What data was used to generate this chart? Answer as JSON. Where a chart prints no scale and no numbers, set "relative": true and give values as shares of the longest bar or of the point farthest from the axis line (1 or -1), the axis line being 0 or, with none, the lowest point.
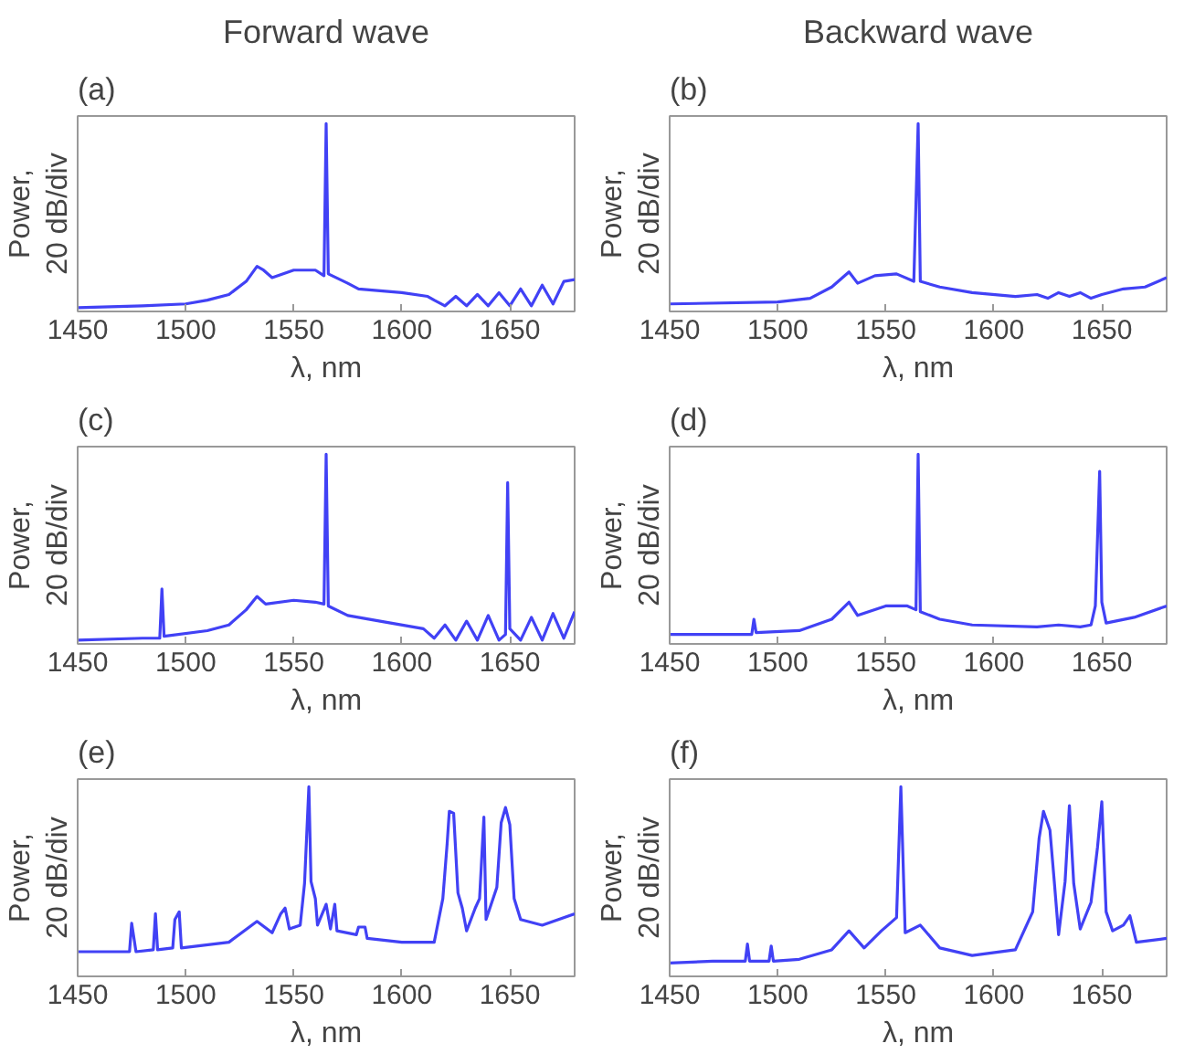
{
  "chart_data": [
    {
      "type": "line",
      "title": "Forward wave",
      "annotations": [
        "(a)"
      ],
      "xlabel": "λ, nm",
      "ylabel": "Power,\n20 dB/div",
      "relative": true,
      "tick_labels": "x",
      "xlim": [
        1450,
        1680
      ],
      "xticks": [
        1450,
        1500,
        1550,
        1600,
        1650
      ],
      "color": "#4141f5",
      "x": [
        1450,
        1480,
        1500,
        1510,
        1520,
        1528,
        1533,
        1536,
        1540,
        1550,
        1560,
        1564,
        1565,
        1566,
        1575,
        1580,
        1600,
        1612,
        1615,
        1620,
        1625,
        1630,
        1635,
        1640,
        1645,
        1650,
        1655,
        1660,
        1665,
        1670,
        1675,
        1680
      ],
      "values": [
        0.02,
        0.03,
        0.04,
        0.06,
        0.09,
        0.16,
        0.24,
        0.22,
        0.18,
        0.22,
        0.22,
        0.19,
        1.0,
        0.2,
        0.15,
        0.12,
        0.1,
        0.08,
        0.06,
        0.03,
        0.08,
        0.03,
        0.09,
        0.03,
        0.1,
        0.03,
        0.12,
        0.03,
        0.14,
        0.04,
        0.16,
        0.17
      ]
    },
    {
      "type": "line",
      "title": "Backward wave",
      "annotations": [
        "(b)"
      ],
      "xlabel": "λ, nm",
      "ylabel": "Power,\n20 dB/div",
      "relative": true,
      "tick_labels": "x",
      "xlim": [
        1450,
        1680
      ],
      "xticks": [
        1450,
        1500,
        1550,
        1600,
        1650
      ],
      "color": "#4141f5",
      "x": [
        1450,
        1500,
        1515,
        1525,
        1533,
        1537,
        1545,
        1555,
        1563,
        1565,
        1566,
        1575,
        1590,
        1610,
        1620,
        1625,
        1630,
        1635,
        1640,
        1645,
        1650,
        1660,
        1670,
        1680
      ],
      "values": [
        0.04,
        0.05,
        0.07,
        0.13,
        0.21,
        0.15,
        0.19,
        0.2,
        0.16,
        1.0,
        0.16,
        0.13,
        0.1,
        0.08,
        0.09,
        0.07,
        0.1,
        0.08,
        0.1,
        0.07,
        0.09,
        0.12,
        0.13,
        0.18
      ]
    },
    {
      "type": "line",
      "annotations": [
        "(c)"
      ],
      "xlabel": "λ, nm",
      "ylabel": "Power,\n20 dB/div",
      "relative": true,
      "tick_labels": "x",
      "xlim": [
        1450,
        1680
      ],
      "xticks": [
        1450,
        1500,
        1550,
        1600,
        1650
      ],
      "color": "#4141f5",
      "x": [
        1450,
        1480,
        1488,
        1489,
        1490,
        1510,
        1520,
        1528,
        1533,
        1537,
        1550,
        1560,
        1564,
        1565,
        1566,
        1575,
        1590,
        1610,
        1615,
        1620,
        1625,
        1630,
        1635,
        1640,
        1645,
        1648,
        1649,
        1650,
        1655,
        1660,
        1665,
        1670,
        1675,
        1680
      ],
      "values": [
        0.02,
        0.03,
        0.03,
        0.29,
        0.04,
        0.07,
        0.1,
        0.18,
        0.25,
        0.21,
        0.23,
        0.22,
        0.21,
        1.0,
        0.2,
        0.15,
        0.12,
        0.08,
        0.03,
        0.1,
        0.02,
        0.12,
        0.02,
        0.15,
        0.02,
        0.05,
        0.85,
        0.08,
        0.02,
        0.14,
        0.02,
        0.16,
        0.03,
        0.17
      ]
    },
    {
      "type": "line",
      "annotations": [
        "(d)"
      ],
      "xlabel": "λ, nm",
      "ylabel": "Power,\n20 dB/div",
      "relative": true,
      "tick_labels": "x",
      "xlim": [
        1450,
        1680
      ],
      "xticks": [
        1450,
        1500,
        1550,
        1600,
        1650
      ],
      "color": "#4141f5",
      "x": [
        1450,
        1488,
        1489,
        1490,
        1510,
        1525,
        1533,
        1537,
        1550,
        1560,
        1564,
        1565,
        1566,
        1575,
        1590,
        1620,
        1630,
        1640,
        1645,
        1647,
        1649,
        1650,
        1652,
        1665,
        1680
      ],
      "values": [
        0.05,
        0.05,
        0.13,
        0.06,
        0.07,
        0.13,
        0.22,
        0.15,
        0.2,
        0.2,
        0.18,
        1.0,
        0.17,
        0.13,
        0.1,
        0.09,
        0.1,
        0.09,
        0.1,
        0.2,
        0.91,
        0.22,
        0.11,
        0.14,
        0.2
      ]
    },
    {
      "type": "line",
      "annotations": [
        "(e)"
      ],
      "xlabel": "λ, nm",
      "ylabel": "Power,\n20 dB/div",
      "relative": true,
      "tick_labels": "x",
      "xlim": [
        1450,
        1680
      ],
      "xticks": [
        1450,
        1500,
        1550,
        1600,
        1650
      ],
      "color": "#4141f5",
      "x": [
        1450,
        1474,
        1475,
        1477,
        1485,
        1486,
        1487,
        1494,
        1495,
        1497,
        1498,
        1520,
        1533,
        1540,
        1544,
        1546,
        1548,
        1553,
        1555,
        1557,
        1558,
        1560,
        1561,
        1565,
        1567,
        1569,
        1570,
        1579,
        1580,
        1583,
        1584,
        1600,
        1615,
        1619,
        1621,
        1622,
        1624,
        1626,
        1628,
        1630,
        1634,
        1636,
        1638,
        1639,
        1644,
        1646,
        1648,
        1650,
        1652,
        1655,
        1665,
        1680
      ],
      "values": [
        0.13,
        0.13,
        0.28,
        0.13,
        0.14,
        0.33,
        0.14,
        0.15,
        0.3,
        0.34,
        0.15,
        0.18,
        0.29,
        0.23,
        0.33,
        0.36,
        0.25,
        0.27,
        0.49,
        1.0,
        0.5,
        0.41,
        0.27,
        0.38,
        0.25,
        0.38,
        0.24,
        0.22,
        0.26,
        0.26,
        0.2,
        0.18,
        0.18,
        0.41,
        0.7,
        0.87,
        0.86,
        0.44,
        0.36,
        0.24,
        0.36,
        0.41,
        0.84,
        0.3,
        0.47,
        0.81,
        0.89,
        0.8,
        0.41,
        0.3,
        0.27,
        0.33
      ]
    },
    {
      "type": "line",
      "annotations": [
        "(f)"
      ],
      "xlabel": "λ, nm",
      "ylabel": "Power,\n20 dB/div",
      "relative": true,
      "tick_labels": "x",
      "xlim": [
        1450,
        1680
      ],
      "xticks": [
        1450,
        1500,
        1550,
        1600,
        1650
      ],
      "color": "#4141f5",
      "x": [
        1450,
        1470,
        1485,
        1486,
        1487,
        1496,
        1497,
        1498,
        1510,
        1525,
        1533,
        1540,
        1548,
        1555,
        1557,
        1559,
        1566,
        1575,
        1590,
        1610,
        1618,
        1621,
        1623,
        1626,
        1628,
        1630,
        1633,
        1635,
        1637,
        1640,
        1645,
        1648,
        1650,
        1652,
        1655,
        1660,
        1663,
        1666,
        1680
      ],
      "values": [
        0.07,
        0.08,
        0.08,
        0.17,
        0.08,
        0.08,
        0.16,
        0.08,
        0.09,
        0.14,
        0.24,
        0.15,
        0.24,
        0.31,
        1.0,
        0.23,
        0.27,
        0.15,
        0.11,
        0.14,
        0.34,
        0.73,
        0.87,
        0.77,
        0.5,
        0.22,
        0.5,
        0.9,
        0.49,
        0.25,
        0.39,
        0.68,
        0.92,
        0.34,
        0.24,
        0.27,
        0.32,
        0.18,
        0.2
      ]
    }
  ]
}
